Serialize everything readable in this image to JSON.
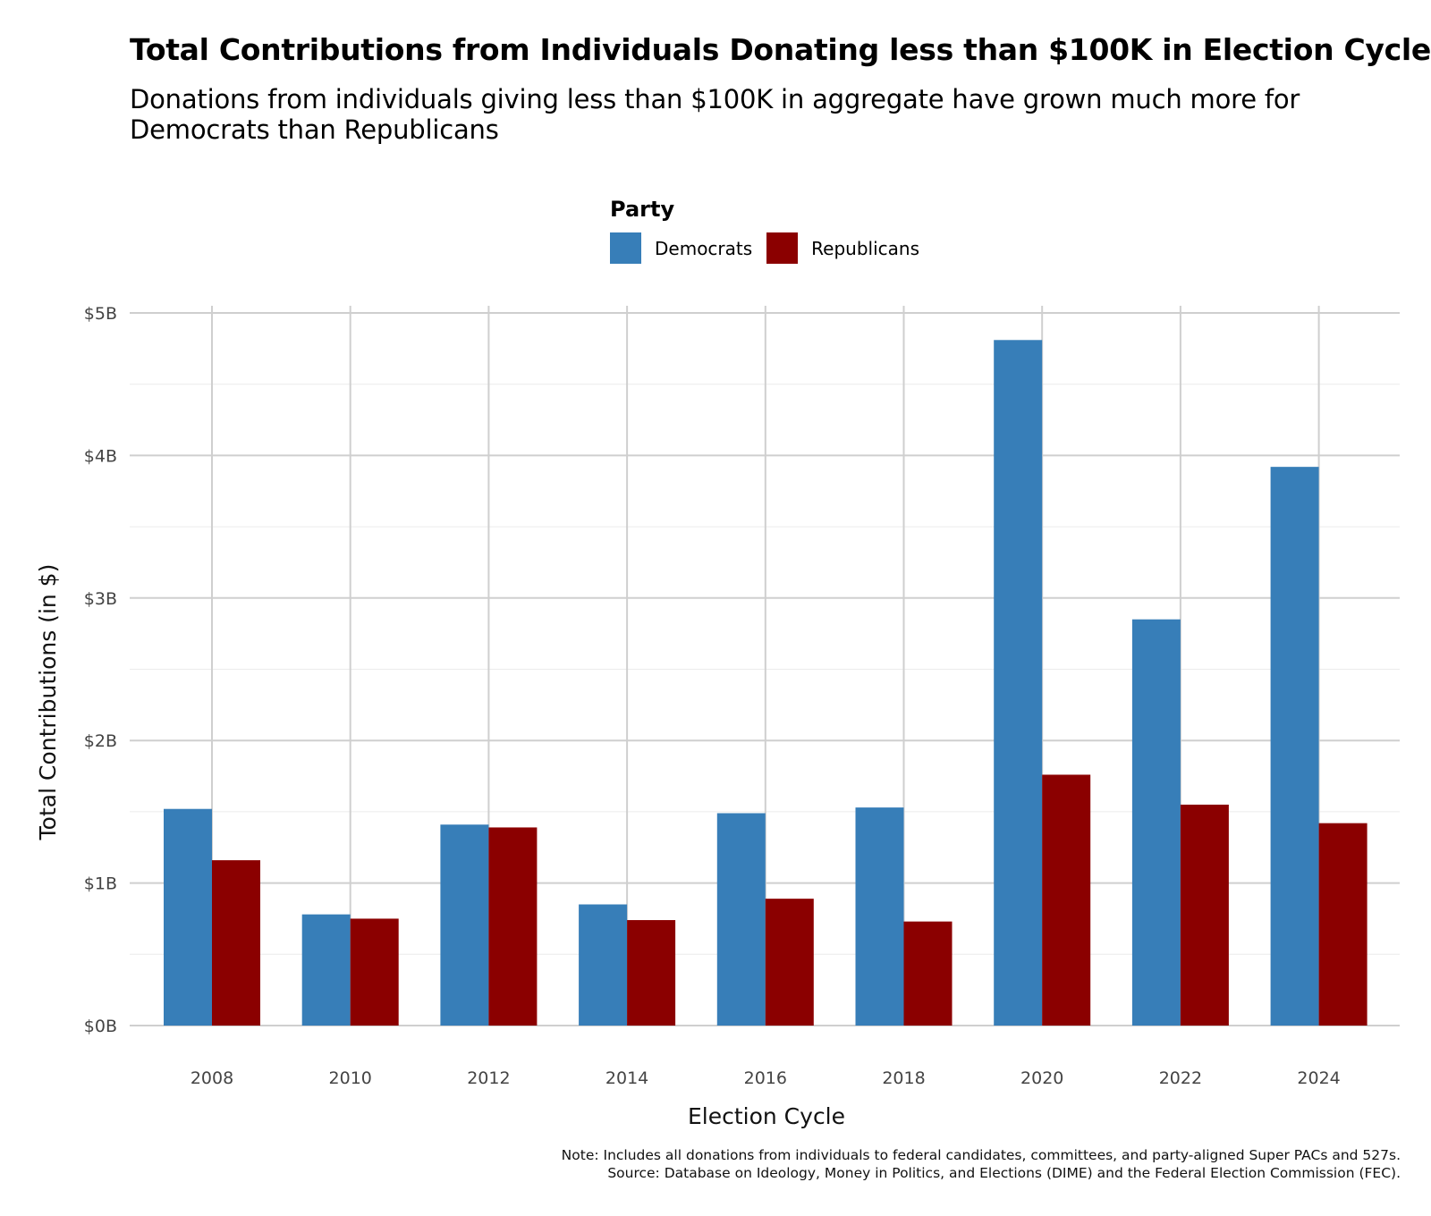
{
  "chart_data": {
    "type": "bar",
    "title": "Total Contributions from Individuals Donating less than $100K in Election Cycle",
    "subtitle": "Donations from individuals giving less than $100K in aggregate have grown much more for Democrats than Republicans",
    "xlabel": "Election Cycle",
    "ylabel": "Total Contributions (in $)",
    "categories": [
      "2008",
      "2010",
      "2012",
      "2014",
      "2016",
      "2018",
      "2020",
      "2022",
      "2024"
    ],
    "series": [
      {
        "name": "Democrats",
        "color": "#377EB8",
        "values": [
          1.52,
          0.78,
          1.41,
          0.85,
          1.49,
          1.53,
          4.81,
          2.85,
          3.92
        ]
      },
      {
        "name": "Republicans",
        "color": "#8B0000",
        "values": [
          1.16,
          0.75,
          1.39,
          0.74,
          0.89,
          0.73,
          1.76,
          1.55,
          1.42
        ]
      }
    ],
    "ylim": [
      0,
      5
    ],
    "yticks": [
      0,
      1,
      2,
      3,
      4,
      5
    ],
    "ytick_labels": [
      "$0B",
      "$1B",
      "$2B",
      "$3B",
      "$4B",
      "$5B"
    ],
    "legend": {
      "title": "Party",
      "position": "top"
    },
    "grid": true
  },
  "note": {
    "line1": "Note: Includes all donations from individuals to federal candidates, committees, and party-aligned Super PACs and 527s.",
    "line2": "Source: Database on Ideology, Money in Politics, and Elections (DIME) and the Federal Election Commission (FEC)."
  }
}
